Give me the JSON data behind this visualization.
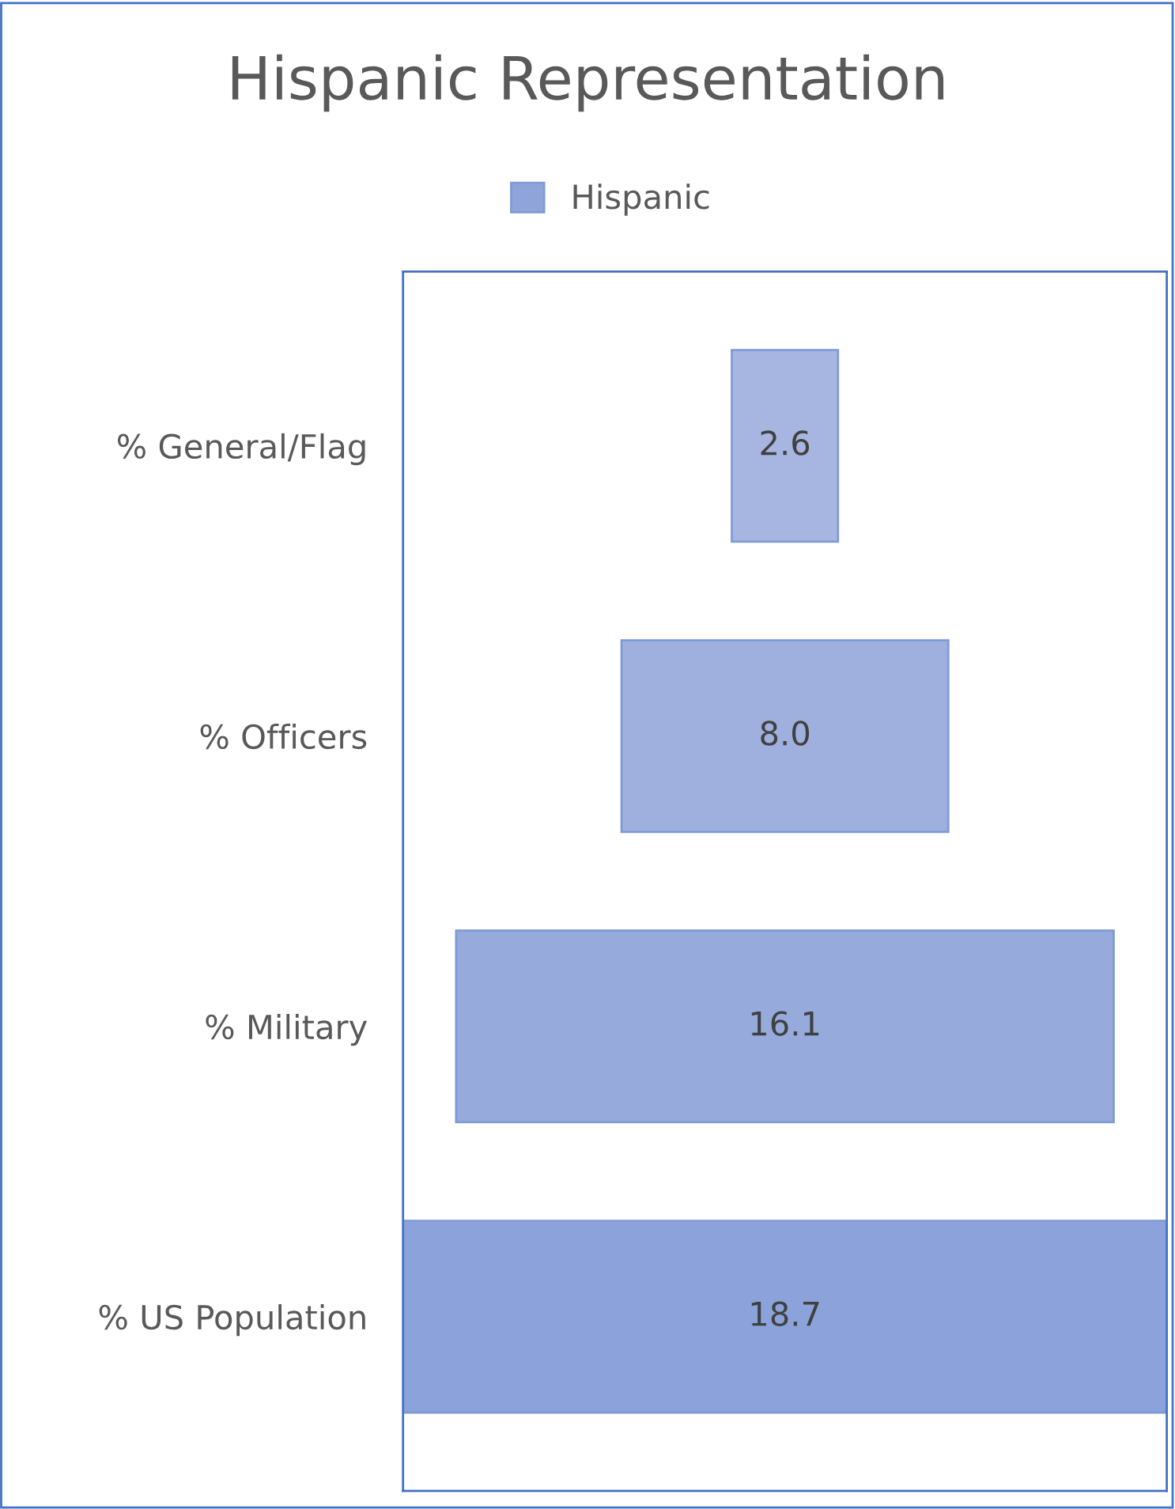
{
  "chart_data": {
    "type": "other",
    "title": "Hispanic Representation",
    "categories": [
      "% General/Flag",
      "% Officers",
      "% Military",
      "% US Population"
    ],
    "series": [
      {
        "name": "Hispanic",
        "color": "#8fa5da",
        "colors": [
          "#a7b6e1",
          "#9fb0de",
          "#97aadc",
          "#8ba3da"
        ],
        "values": [
          2.6,
          8.0,
          16.1,
          18.7
        ],
        "value_labels": [
          "2.6",
          "8.0",
          "16.1",
          "18.7"
        ]
      }
    ],
    "legend": "top"
  }
}
